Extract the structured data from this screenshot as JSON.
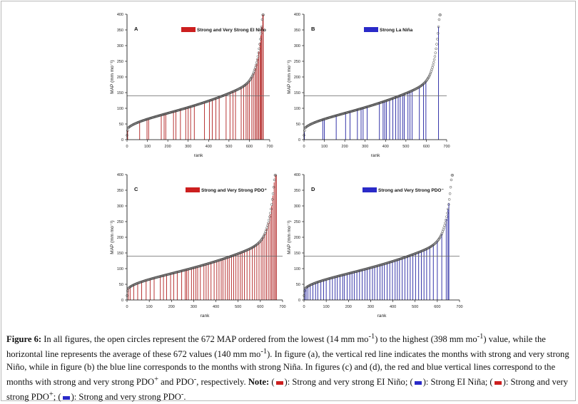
{
  "chart_data": [
    {
      "type": "scatter",
      "panel": "A",
      "title": "",
      "legend": "Strong and Very Strong El Niño",
      "legend_color": "#cc1f1f",
      "xlabel": "rank",
      "ylabel": "MAP (mm mo⁻¹)",
      "xlim": [
        0,
        700
      ],
      "ylim": [
        0,
        400
      ],
      "xticks": [
        0,
        100,
        200,
        300,
        400,
        500,
        600,
        700
      ],
      "yticks": [
        0,
        50,
        100,
        150,
        200,
        250,
        300,
        350,
        400
      ],
      "mean_line": 140,
      "series_points": "672 ranked MAP values, min 14, max 398",
      "line_color": "#b02020",
      "event_ranks": [
        3,
        62,
        98,
        106,
        168,
        182,
        190,
        228,
        240,
        262,
        288,
        300,
        312,
        330,
        380,
        404,
        418,
        436,
        452,
        486,
        505,
        520,
        532,
        560,
        572,
        584,
        592,
        600,
        612,
        620,
        628,
        634,
        640,
        646,
        652,
        656,
        660,
        666,
        668
      ]
    },
    {
      "type": "scatter",
      "panel": "B",
      "title": "",
      "legend": "Strong La Niña",
      "legend_color": "#2a2ac8",
      "xlabel": "rank",
      "ylabel": "MAP (mm mo⁻¹)",
      "xlim": [
        0,
        700
      ],
      "ylim": [
        0,
        400
      ],
      "xticks": [
        0,
        100,
        200,
        300,
        400,
        500,
        600,
        700
      ],
      "yticks": [
        0,
        50,
        100,
        150,
        200,
        250,
        300,
        350,
        400
      ],
      "mean_line": 140,
      "line_color": "#2020a0",
      "event_ranks": [
        2,
        92,
        100,
        158,
        204,
        226,
        262,
        280,
        290,
        310,
        370,
        388,
        396,
        404,
        420,
        436,
        450,
        462,
        472,
        484,
        492,
        510,
        520,
        530,
        566,
        586,
        598,
        660
      ]
    },
    {
      "type": "scatter",
      "panel": "C",
      "title": "",
      "legend": "Strong and Very Strong PDO⁺",
      "legend_color": "#cc1f1f",
      "xlabel": "rank",
      "ylabel": "MAP (mm mo⁻¹)",
      "xlim": [
        0,
        700
      ],
      "ylim": [
        0,
        400
      ],
      "xticks": [
        0,
        100,
        200,
        300,
        400,
        500,
        600,
        700
      ],
      "yticks": [
        0,
        50,
        100,
        150,
        200,
        250,
        300,
        350,
        400
      ],
      "mean_line": 140,
      "line_color": "#b02020",
      "event_ranks": [
        6,
        14,
        30,
        48,
        66,
        86,
        104,
        122,
        150,
        164,
        178,
        196,
        210,
        226,
        246,
        262,
        268,
        276,
        290,
        300,
        310,
        318,
        330,
        346,
        356,
        366,
        378,
        392,
        404,
        414,
        424,
        432,
        442,
        452,
        460,
        470,
        480,
        490,
        500,
        510,
        518,
        528,
        540,
        552,
        564,
        574,
        584,
        594,
        604,
        612,
        620,
        628,
        636,
        644,
        650,
        656,
        662,
        668,
        672
      ]
    },
    {
      "type": "scatter",
      "panel": "D",
      "title": "",
      "legend": "Strong and Very Strong PDO⁻",
      "legend_color": "#2a2ac8",
      "xlabel": "rank",
      "ylabel": "MAP (mm mo⁻¹)",
      "xlim": [
        0,
        700
      ],
      "ylim": [
        0,
        400
      ],
      "xticks": [
        0,
        100,
        200,
        300,
        400,
        500,
        600,
        700
      ],
      "yticks": [
        0,
        50,
        100,
        150,
        200,
        250,
        300,
        350,
        400
      ],
      "mean_line": 140,
      "line_color": "#2020a0",
      "event_ranks": [
        4,
        10,
        18,
        28,
        40,
        52,
        62,
        76,
        88,
        100,
        116,
        128,
        140,
        150,
        162,
        174,
        182,
        194,
        206,
        216,
        226,
        238,
        250,
        262,
        274,
        284,
        296,
        308,
        318,
        330,
        342,
        352,
        362,
        374,
        386,
        398,
        410,
        420,
        430,
        442,
        454,
        466,
        478,
        490,
        502,
        516,
        528,
        540,
        552,
        566,
        582,
        600,
        620,
        640,
        648,
        652
      ]
    }
  ],
  "caption": {
    "label": "Figure 6:",
    "part1": " In all figures, the open circles represent the 672 MAP ordered from the lowest (14 mm mo",
    "sup1": "-1",
    "part2": ") to the highest (398 mm mo",
    "sup2": "-1",
    "part3": ") value, while the horizontal line represents the average of these 672 values (140 mm mo",
    "sup3": "-1",
    "part4": "). In figure (a), the vertical red line indicates the months with strong and very strong Niño, while in figure (b) the blue line corresponds to the months with strong Niña. In figures (c) and (d), the red and blue vertical lines correspond to the months with strong and very strong PDO",
    "sup4": "+",
    "part5": " and PDO",
    "sup5": "-",
    "part6": ", respectively. ",
    "note_label": "Note:",
    "note1": "): Strong and very strong EI Niño; (",
    "note2": "): Strong EI Niña; (",
    "note3": "): Strong and very strong PDO",
    "sup6": "+",
    "note4": "; (",
    "note5": "): Strong and very strong PDO",
    "sup7": "-",
    "note6": ".",
    "red": "#cc1f1f",
    "blue": "#2a2ac8"
  }
}
